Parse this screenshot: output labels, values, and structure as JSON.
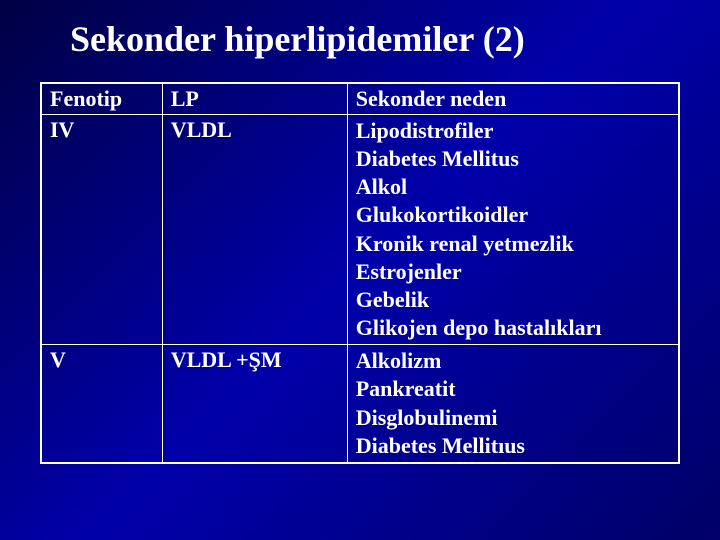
{
  "slide": {
    "title": "Sekonder hiperlipidemiler (2)",
    "title_fontsize": 36,
    "title_color": "#ffffff",
    "background_gradient": [
      "#000044",
      "#0000aa",
      "#000066"
    ],
    "table": {
      "border_color": "#ffffff",
      "text_color": "#ffffff",
      "cell_fontsize": 22,
      "font_weight": "bold",
      "columns": [
        {
          "key": "fenotip",
          "label": "Fenotip",
          "width_pct": 19
        },
        {
          "key": "lp",
          "label": "LP",
          "width_pct": 29
        },
        {
          "key": "neden",
          "label": "Sekonder neden",
          "width_pct": 52
        }
      ],
      "rows": [
        {
          "fenotip": "IV",
          "lp": "VLDL",
          "neden": [
            "Lipodistrofiler",
            "Diabetes Mellitus",
            "Alkol",
            "Glukokortikoidler",
            "Kronik renal yetmezlik",
            "Estrojenler",
            "Gebelik",
            "Glikojen depo hastalıkları"
          ]
        },
        {
          "fenotip": "V",
          "lp": "VLDL +ŞM",
          "neden": [
            "Alkolizm",
            "Pankreatit",
            "Disglobulinemi",
            "Diabetes Mellitıus"
          ]
        }
      ]
    }
  }
}
